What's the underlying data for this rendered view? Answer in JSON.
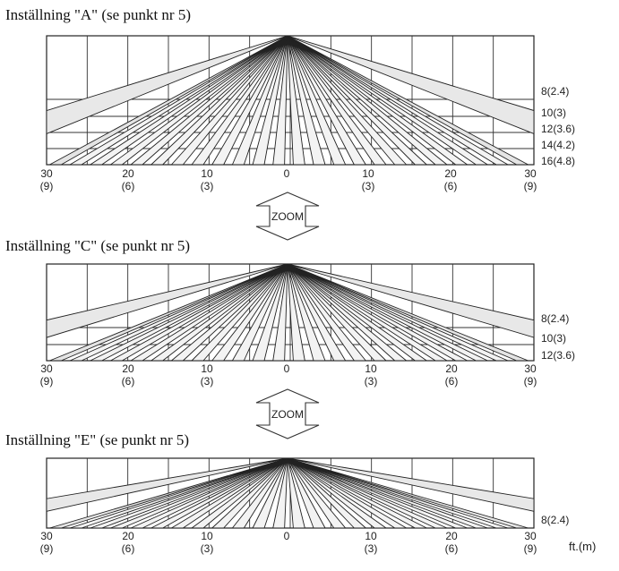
{
  "diagrams": [
    {
      "title": "Inställning \"A\" (se punkt nr 5)",
      "range_labels": [
        "8(2.4)",
        "10(3)",
        "12(3.6)",
        "14(4.2)",
        "16(4.8)"
      ],
      "x_labels": [
        {
          "ft": "30",
          "m": "(9)"
        },
        {
          "ft": "20",
          "m": "(6)"
        },
        {
          "ft": "10",
          "m": "(3)"
        },
        {
          "ft": "0",
          "m": ""
        },
        {
          "ft": "10",
          "m": "(3)"
        },
        {
          "ft": "20",
          "m": "(6)"
        },
        {
          "ft": "30",
          "m": "(9)"
        }
      ]
    },
    {
      "title": "Inställning \"C\" (se punkt nr 5)",
      "range_labels": [
        "8(2.4)",
        "10(3)",
        "12(3.6)"
      ],
      "x_labels": [
        {
          "ft": "30",
          "m": "(9)"
        },
        {
          "ft": "20",
          "m": "(6)"
        },
        {
          "ft": "10",
          "m": "(3)"
        },
        {
          "ft": "0",
          "m": ""
        },
        {
          "ft": "10",
          "m": "(3)"
        },
        {
          "ft": "20",
          "m": "(6)"
        },
        {
          "ft": "30",
          "m": "(9)"
        }
      ]
    },
    {
      "title": "Inställning \"E\" (se punkt nr 5)",
      "range_labels": [
        "8(2.4)"
      ],
      "x_labels": [
        {
          "ft": "30",
          "m": "(9)"
        },
        {
          "ft": "20",
          "m": "(6)"
        },
        {
          "ft": "10",
          "m": "(3)"
        },
        {
          "ft": "0",
          "m": ""
        },
        {
          "ft": "10",
          "m": "(3)"
        },
        {
          "ft": "20",
          "m": "(6)"
        },
        {
          "ft": "30",
          "m": "(9)"
        }
      ]
    }
  ],
  "zoom_labels": [
    "ZOOM",
    "ZOOM"
  ],
  "unit_label": "ft.(m)"
}
